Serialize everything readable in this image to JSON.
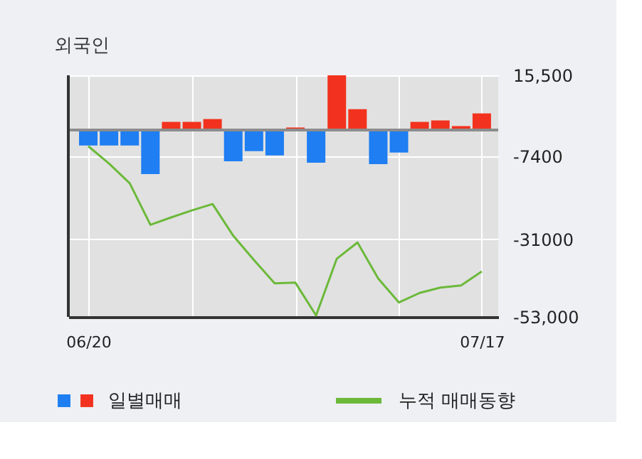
{
  "chart_data": {
    "type": "bar",
    "title": "외국인",
    "categories": [
      "06/20",
      null,
      null,
      null,
      null,
      null,
      null,
      null,
      null,
      null,
      null,
      null,
      null,
      null,
      null,
      null,
      null,
      null,
      null,
      "07/17"
    ],
    "series": [
      {
        "name": "일별매매",
        "values": [
          -4400,
          -4400,
          -4400,
          -12500,
          2300,
          2300,
          3100,
          -8900,
          -6000,
          -7200,
          700,
          -9300,
          15500,
          5900,
          -9700,
          -6400,
          2300,
          2700,
          1100,
          4700
        ],
        "colors": [
          "#1e7ef2",
          "#1e7ef2",
          "#1e7ef2",
          "#1e7ef2",
          "#f2321e",
          "#f2321e",
          "#f2321e",
          "#1e7ef2",
          "#1e7ef2",
          "#1e7ef2",
          "#f2321e",
          "#1e7ef2",
          "#f2321e",
          "#f2321e",
          "#1e7ef2",
          "#1e7ef2",
          "#f2321e",
          "#f2321e",
          "#f2321e",
          "#f2321e"
        ]
      },
      {
        "name": "누적 매매동향",
        "type": "line",
        "color": "#6cb93a",
        "values": [
          -4600,
          -9500,
          -15100,
          -26900,
          -24800,
          -22800,
          -21000,
          -30000,
          -36900,
          -43500,
          -43300,
          -52600,
          -36500,
          -31900,
          -42100,
          -48900,
          -46200,
          -44700,
          -44100,
          -40100
        ]
      }
    ],
    "ylim": [
      -53000,
      15500
    ],
    "yticks": [
      {
        "value": 15500,
        "label": "15,500"
      },
      {
        "value": -7400,
        "label": "-7400"
      },
      {
        "value": -31000,
        "label": "-31000"
      },
      {
        "value": -53000,
        "label": "-53,000"
      }
    ],
    "ref_lines": [
      {
        "axis": "y",
        "value": 0,
        "color": "#8c8c8c"
      }
    ],
    "grid": true,
    "legend": "bottom",
    "line_style": "solid"
  }
}
